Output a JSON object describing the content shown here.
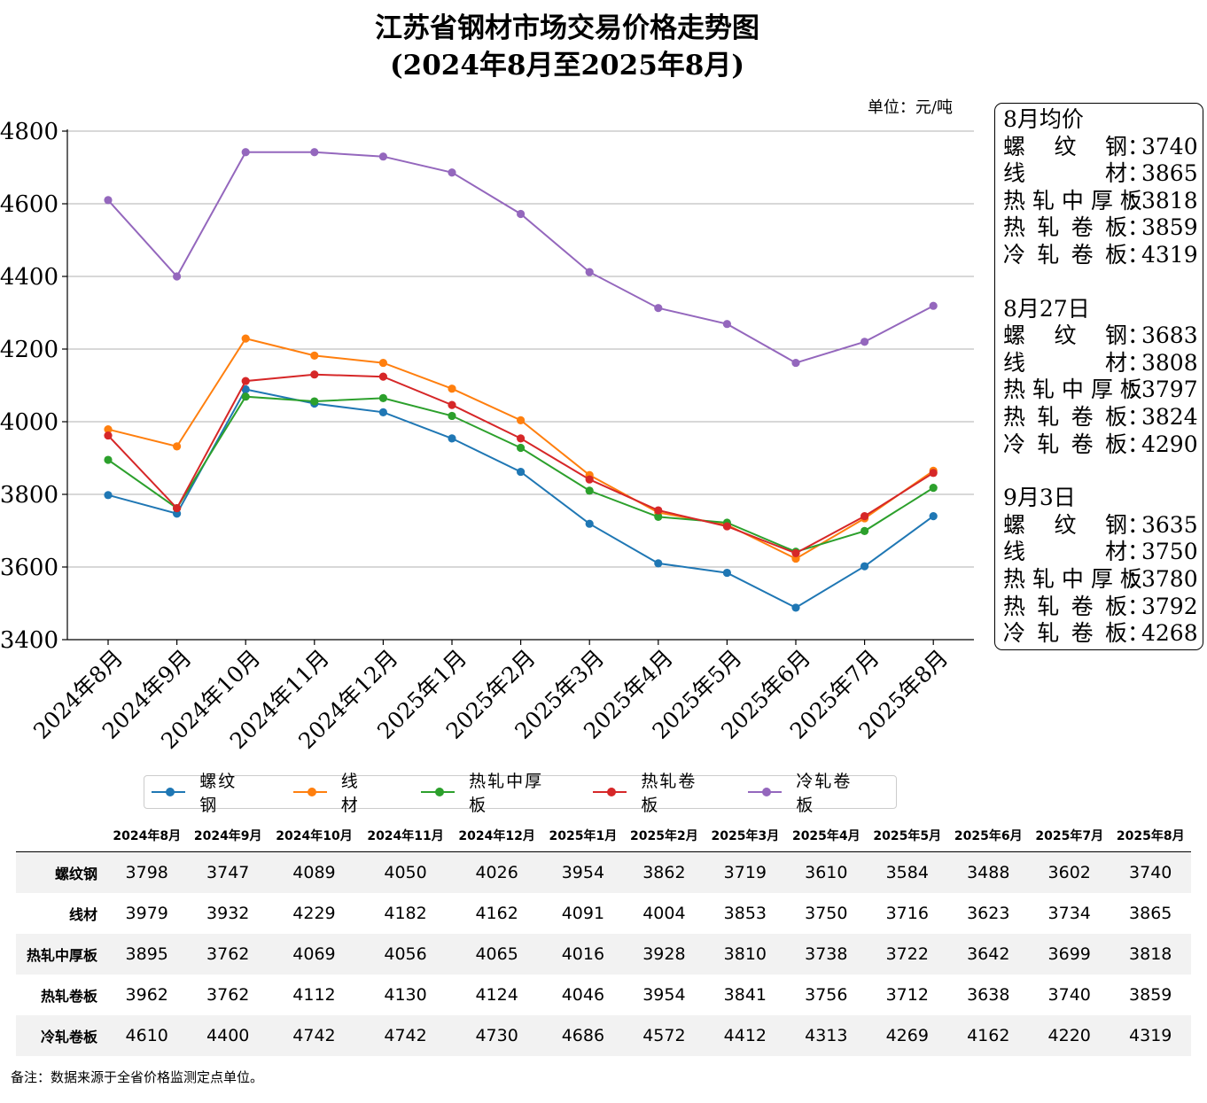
{
  "title_line1": "江苏省钢材市场交易价格走势图",
  "title_line2": "(2024年8月至2025年8月)",
  "chart_data": {
    "type": "line",
    "unit_label": "单位：元/吨",
    "categories": [
      "2024年8月",
      "2024年9月",
      "2024年10月",
      "2024年11月",
      "2024年12月",
      "2025年1月",
      "2025年2月",
      "2025年3月",
      "2025年4月",
      "2025年5月",
      "2025年6月",
      "2025年7月",
      "2025年8月"
    ],
    "ylim": [
      3400,
      4800
    ],
    "yticks": [
      3400,
      3600,
      3800,
      4000,
      4200,
      4400,
      4600,
      4800
    ],
    "grid": "horizontal",
    "legend_position": "bottom",
    "series": [
      {
        "name": "螺纹钢",
        "color": "#1f77b4",
        "values": [
          3798,
          3747,
          4089,
          4050,
          4026,
          3954,
          3862,
          3719,
          3610,
          3584,
          3488,
          3602,
          3740
        ]
      },
      {
        "name": "线材",
        "color": "#ff7f0e",
        "values": [
          3979,
          3932,
          4229,
          4182,
          4162,
          4091,
          4004,
          3853,
          3750,
          3716,
          3623,
          3734,
          3865
        ]
      },
      {
        "name": "热轧中厚板",
        "color": "#2ca02c",
        "values": [
          3895,
          3762,
          4069,
          4056,
          4065,
          4016,
          3928,
          3810,
          3738,
          3722,
          3642,
          3699,
          3818
        ]
      },
      {
        "name": "热轧卷板",
        "color": "#d62728",
        "values": [
          3962,
          3762,
          4112,
          4130,
          4124,
          4046,
          3954,
          3841,
          3756,
          3712,
          3638,
          3740,
          3859
        ]
      },
      {
        "name": "冷轧卷板",
        "color": "#9467bd",
        "values": [
          4610,
          4400,
          4742,
          4742,
          4730,
          4686,
          4572,
          4412,
          4313,
          4269,
          4162,
          4220,
          4319
        ]
      }
    ]
  },
  "legend_labels": [
    "螺纹钢",
    "线材",
    "热轧中厚板",
    "热轧卷板",
    "冷轧卷板"
  ],
  "info_box": {
    "groups": [
      {
        "heading": "8月均价",
        "rows": [
          {
            "label": "螺纹钢",
            "value": "3740"
          },
          {
            "label": "线材",
            "value": "3865"
          },
          {
            "label": "热轧中厚板",
            "value": "3818"
          },
          {
            "label": "热轧卷板",
            "value": "3859"
          },
          {
            "label": "冷轧卷板",
            "value": "4319"
          }
        ]
      },
      {
        "heading": "8月27日",
        "rows": [
          {
            "label": "螺纹钢",
            "value": "3683"
          },
          {
            "label": "线材",
            "value": "3808"
          },
          {
            "label": "热轧中厚板",
            "value": "3797"
          },
          {
            "label": "热轧卷板",
            "value": "3824"
          },
          {
            "label": "冷轧卷板",
            "value": "4290"
          }
        ]
      },
      {
        "heading": "9月3日",
        "rows": [
          {
            "label": "螺纹钢",
            "value": "3635"
          },
          {
            "label": "线材",
            "value": "3750"
          },
          {
            "label": "热轧中厚板",
            "value": "3780"
          },
          {
            "label": "热轧卷板",
            "value": "3792"
          },
          {
            "label": "冷轧卷板",
            "value": "4268"
          }
        ]
      }
    ]
  },
  "table": {
    "columns": [
      "2024年8月",
      "2024年9月",
      "2024年10月",
      "2024年11月",
      "2024年12月",
      "2025年1月",
      "2025年2月",
      "2025年3月",
      "2025年4月",
      "2025年5月",
      "2025年6月",
      "2025年7月",
      "2025年8月"
    ],
    "rows": [
      {
        "label": "螺纹钢",
        "values": [
          "3798",
          "3747",
          "4089",
          "4050",
          "4026",
          "3954",
          "3862",
          "3719",
          "3610",
          "3584",
          "3488",
          "3602",
          "3740"
        ]
      },
      {
        "label": "线材",
        "values": [
          "3979",
          "3932",
          "4229",
          "4182",
          "4162",
          "4091",
          "4004",
          "3853",
          "3750",
          "3716",
          "3623",
          "3734",
          "3865"
        ]
      },
      {
        "label": "热轧中厚板",
        "values": [
          "3895",
          "3762",
          "4069",
          "4056",
          "4065",
          "4016",
          "3928",
          "3810",
          "3738",
          "3722",
          "3642",
          "3699",
          "3818"
        ]
      },
      {
        "label": "热轧卷板",
        "values": [
          "3962",
          "3762",
          "4112",
          "4130",
          "4124",
          "4046",
          "3954",
          "3841",
          "3756",
          "3712",
          "3638",
          "3740",
          "3859"
        ]
      },
      {
        "label": "冷轧卷板",
        "values": [
          "4610",
          "4400",
          "4742",
          "4742",
          "4730",
          "4686",
          "4572",
          "4412",
          "4313",
          "4269",
          "4162",
          "4220",
          "4319"
        ]
      }
    ]
  },
  "note": "备注：数据来源于全省价格监测定点单位。"
}
